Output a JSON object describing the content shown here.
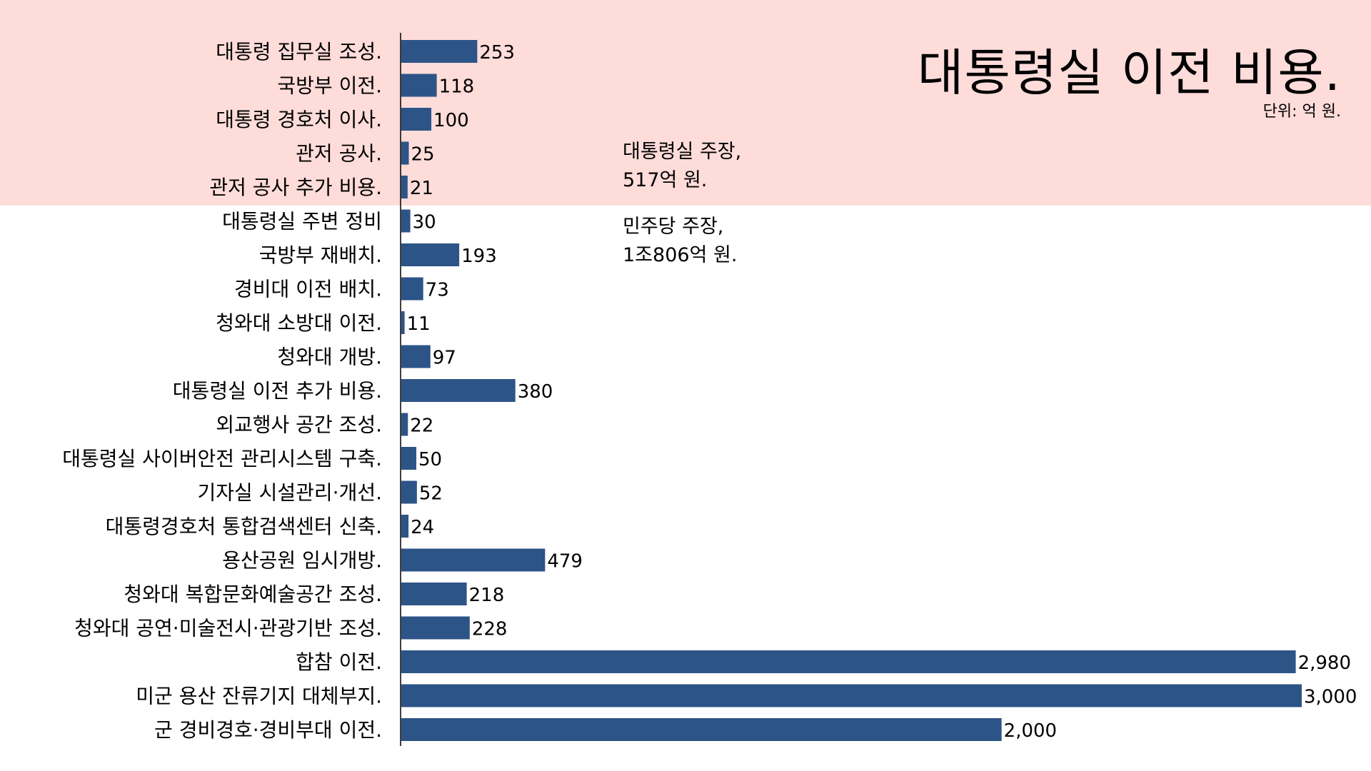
{
  "colors": {
    "bar": "#2d5487",
    "highlight_band": "#fddcd9",
    "axis": "#000000",
    "text": "#000000"
  },
  "header": {
    "title": "대통령실 이전 비용.",
    "unit": "단위: 억 원."
  },
  "notes": {
    "office_claim_line1": "대통령실 주장,",
    "office_claim_line2": "517억 원.",
    "dp_claim_line1": "민주당 주장,",
    "dp_claim_line2": "1조806억 원."
  },
  "chart_data": {
    "type": "bar",
    "orientation": "horizontal",
    "title": "대통령실 이전 비용.",
    "unit": "억 원",
    "xlabel": "",
    "ylabel": "",
    "xlim": [
      0,
      3000
    ],
    "grid": false,
    "highlighted_count": 5,
    "categories": [
      "대통령 집무실 조성.",
      "국방부 이전.",
      "대통령 경호처 이사.",
      "관저 공사.",
      "관저 공사 추가 비용.",
      "대통령실 주변 정비",
      "국방부 재배치.",
      "경비대 이전 배치.",
      "청와대 소방대 이전.",
      "청와대 개방.",
      "대통령실 이전 추가 비용.",
      "외교행사 공간 조성.",
      "대통령실 사이버안전 관리시스템 구축.",
      "기자실 시설관리·개선.",
      "대통령경호처 통합검색센터 신축.",
      "용산공원 임시개방.",
      "청와대 복합문화예술공간 조성.",
      "청와대 공연·미술전시·관광기반 조성.",
      "합참 이전.",
      "미군 용산 잔류기지 대체부지.",
      "군 경비경호·경비부대 이전."
    ],
    "values": [
      253,
      118,
      100,
      25,
      21,
      30,
      193,
      73,
      11,
      97,
      380,
      22,
      50,
      52,
      24,
      479,
      218,
      228,
      2980,
      3000,
      2000
    ],
    "value_labels": [
      "253",
      "118",
      "100",
      "25",
      "21",
      "30",
      "193",
      "73",
      "11",
      "97",
      "380",
      "22",
      "50",
      "52",
      "24",
      "479",
      "218",
      "228",
      "2,980",
      "3,000",
      "2,000"
    ]
  }
}
